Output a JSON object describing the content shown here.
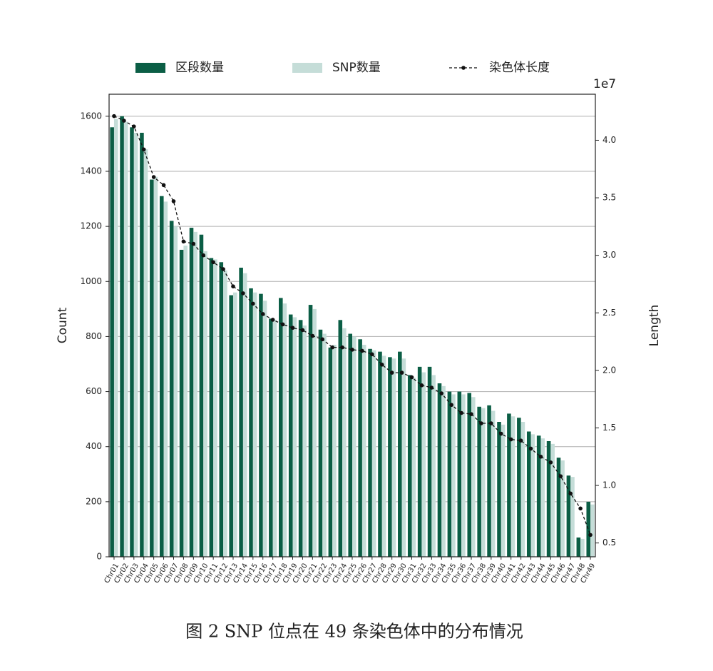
{
  "chart_data": {
    "type": "bar",
    "caption": "图 2 SNP 位点在 49 条染色体中的分布情况",
    "ylabel": "Count",
    "y2label": "Length",
    "y2_offset": "1e7",
    "categories": [
      "Chr01",
      "Chr02",
      "Chr03",
      "Chr04",
      "Chr05",
      "Chr06",
      "Chr07",
      "Chr08",
      "Chr09",
      "Chr10",
      "Chr11",
      "Chr12",
      "Chr13",
      "Chr14",
      "Chr15",
      "Chr16",
      "Chr17",
      "Chr18",
      "Chr19",
      "Chr20",
      "Chr21",
      "Chr22",
      "Chr23",
      "Chr24",
      "Chr25",
      "Chr26",
      "Chr27",
      "Chr28",
      "Chr29",
      "Chr30",
      "Chr31",
      "Chr32",
      "Chr33",
      "Chr34",
      "Chr35",
      "Chr36",
      "Chr37",
      "Chr38",
      "Chr39",
      "Chr40",
      "Chr41",
      "Chr42",
      "Chr43",
      "Chr44",
      "Chr45",
      "Chr46",
      "Chr47",
      "Chr48",
      "Chr49"
    ],
    "series": [
      {
        "name": "区段数量",
        "color": "#0b5e45",
        "values": [
          1560,
          1600,
          1560,
          1540,
          1370,
          1310,
          1220,
          1115,
          1195,
          1170,
          1085,
          1070,
          950,
          1050,
          975,
          955,
          865,
          940,
          880,
          860,
          915,
          825,
          760,
          860,
          810,
          790,
          755,
          745,
          725,
          745,
          660,
          690,
          690,
          630,
          600,
          600,
          595,
          545,
          550,
          490,
          520,
          505,
          455,
          440,
          420,
          360,
          295,
          70,
          200
        ]
      },
      {
        "name": "SNP数量",
        "color": "#c5ddd8",
        "values": [
          1590,
          1580,
          1540,
          1480,
          1380,
          1290,
          1200,
          1130,
          1180,
          1110,
          1080,
          1040,
          960,
          1030,
          960,
          930,
          860,
          920,
          870,
          840,
          900,
          810,
          770,
          830,
          800,
          770,
          750,
          730,
          720,
          720,
          650,
          670,
          660,
          620,
          590,
          590,
          580,
          540,
          530,
          480,
          510,
          490,
          445,
          430,
          410,
          350,
          290,
          65,
          190
        ]
      },
      {
        "name": "染色体长度",
        "color": "#111111",
        "axis": "y2",
        "type": "line",
        "values": [
          4.21,
          4.17,
          4.12,
          3.92,
          3.68,
          3.61,
          3.47,
          3.12,
          3.1,
          3.0,
          2.94,
          2.88,
          2.73,
          2.67,
          2.58,
          2.49,
          2.44,
          2.4,
          2.37,
          2.35,
          2.3,
          2.27,
          2.2,
          2.2,
          2.18,
          2.17,
          2.14,
          2.05,
          1.98,
          1.98,
          1.94,
          1.87,
          1.85,
          1.8,
          1.7,
          1.63,
          1.62,
          1.54,
          1.54,
          1.45,
          1.4,
          1.39,
          1.32,
          1.25,
          1.2,
          1.08,
          0.93,
          0.8,
          0.57
        ]
      }
    ],
    "ylim": [
      0,
      1680
    ],
    "yticks": [
      0,
      200,
      400,
      600,
      800,
      1000,
      1200,
      1400,
      1600
    ],
    "y2lim": [
      0.38,
      4.4
    ],
    "y2ticks": [
      0.5,
      {
        "value": 1,
        "label": "1.0"
      },
      1.5,
      {
        "value": 2,
        "label": "2.0"
      },
      2.5,
      {
        "value": 3,
        "label": "3.0"
      },
      3.5,
      {
        "value": 4,
        "label": "4.0"
      }
    ],
    "grid": true,
    "legend": "top"
  }
}
